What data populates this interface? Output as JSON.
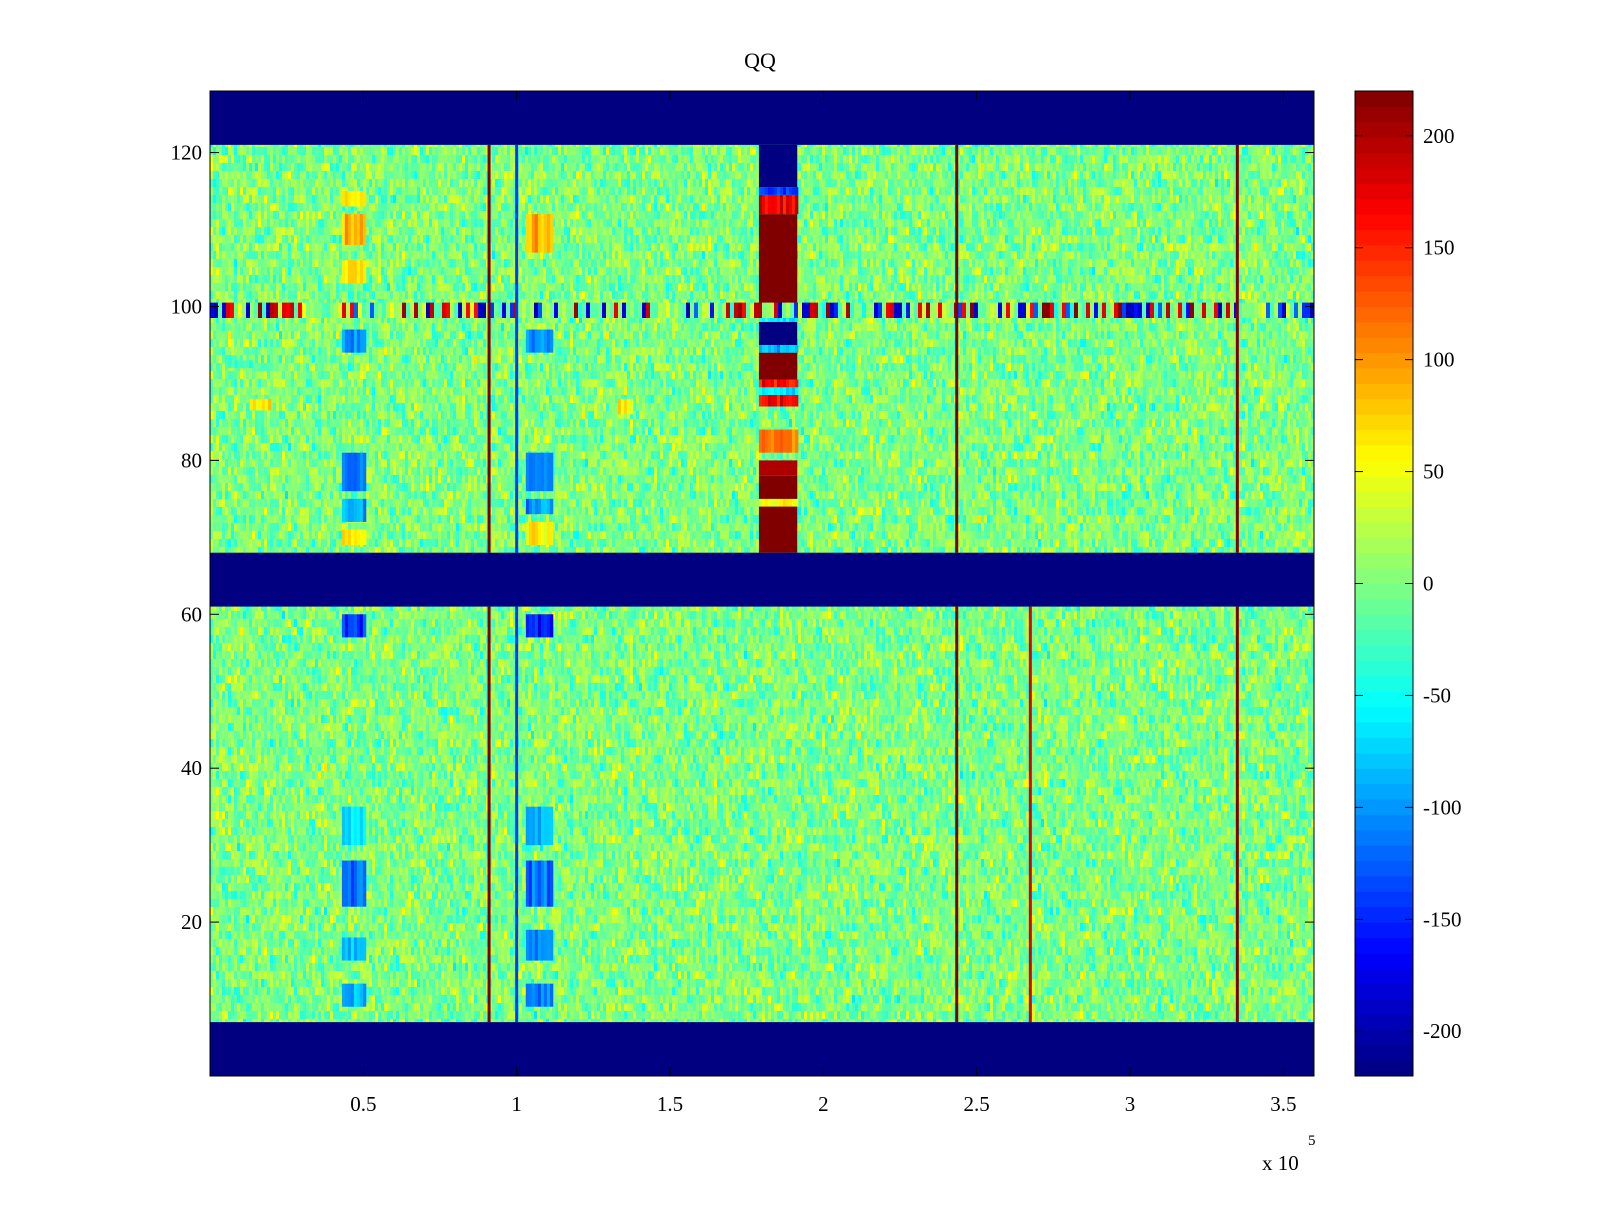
{
  "chart_data": {
    "type": "heatmap",
    "title": "QQ",
    "xlabel": "",
    "ylabel": "",
    "x_multiplier_label": "x 10",
    "x_multiplier_exponent": "5",
    "xlim": [
      0,
      360000
    ],
    "ylim": [
      0,
      128
    ],
    "x_ticks": [
      {
        "value": 50000,
        "label": "0.5"
      },
      {
        "value": 100000,
        "label": "1"
      },
      {
        "value": 150000,
        "label": "1.5"
      },
      {
        "value": 200000,
        "label": "2"
      },
      {
        "value": 250000,
        "label": "2.5"
      },
      {
        "value": 300000,
        "label": "3"
      },
      {
        "value": 350000,
        "label": "3.5"
      }
    ],
    "y_ticks": [
      {
        "value": 20,
        "label": "20"
      },
      {
        "value": 40,
        "label": "40"
      },
      {
        "value": 60,
        "label": "60"
      },
      {
        "value": 80,
        "label": "80"
      },
      {
        "value": 100,
        "label": "100"
      },
      {
        "value": 120,
        "label": "120"
      }
    ],
    "colormap": "jet",
    "clim": [
      -220,
      220
    ],
    "colorbar_ticks": [
      {
        "value": 200,
        "label": "200"
      },
      {
        "value": 150,
        "label": "150"
      },
      {
        "value": 100,
        "label": "100"
      },
      {
        "value": 50,
        "label": "50"
      },
      {
        "value": 0,
        "label": "0"
      },
      {
        "value": -50,
        "label": "-50"
      },
      {
        "value": -100,
        "label": "-100"
      },
      {
        "value": -150,
        "label": "-150"
      },
      {
        "value": -200,
        "label": "-200"
      }
    ],
    "background_value": 0,
    "masked_value": -220,
    "masked_row_bands": [
      {
        "y_start": 0,
        "y_end": 7
      },
      {
        "y_start": 61,
        "y_end": 68
      },
      {
        "y_start": 121,
        "y_end": 128
      }
    ],
    "vertical_lines": [
      {
        "x": 91000,
        "y_ranges": [
          [
            7,
            61
          ],
          [
            68,
            121
          ]
        ],
        "value": 220
      },
      {
        "x": 100000,
        "y_ranges": [
          [
            7,
            61
          ],
          [
            68,
            121
          ]
        ],
        "value": -140
      },
      {
        "x": 243500,
        "y_ranges": [
          [
            7,
            61
          ],
          [
            68,
            121
          ]
        ],
        "value": 220
      },
      {
        "x": 267500,
        "y_ranges": [
          [
            7,
            61
          ]
        ],
        "value": 180
      },
      {
        "x": 335000,
        "y_ranges": [
          [
            7,
            61
          ],
          [
            68,
            121
          ]
        ],
        "value": 220
      }
    ],
    "patches": [
      {
        "x_start": 43000,
        "x_end": 50000,
        "y_start": 9,
        "y_end": 12,
        "value": -90
      },
      {
        "x_start": 43000,
        "x_end": 50000,
        "y_start": 15,
        "y_end": 18,
        "value": -80
      },
      {
        "x_start": 43000,
        "x_end": 50000,
        "y_start": 22,
        "y_end": 28,
        "value": -110
      },
      {
        "x_start": 43000,
        "x_end": 50000,
        "y_start": 30,
        "y_end": 35,
        "value": -70
      },
      {
        "x_start": 43000,
        "x_end": 50000,
        "y_start": 57,
        "y_end": 60,
        "value": -140
      },
      {
        "x_start": 43000,
        "x_end": 50000,
        "y_start": 69,
        "y_end": 71,
        "value": 60
      },
      {
        "x_start": 43000,
        "x_end": 50000,
        "y_start": 72,
        "y_end": 75,
        "value": -90
      },
      {
        "x_start": 43000,
        "x_end": 50000,
        "y_start": 76,
        "y_end": 81,
        "value": -110
      },
      {
        "x_start": 43000,
        "x_end": 50000,
        "y_start": 94,
        "y_end": 97,
        "value": -100
      },
      {
        "x_start": 43000,
        "x_end": 50000,
        "y_start": 103,
        "y_end": 106,
        "value": 60
      },
      {
        "x_start": 43000,
        "x_end": 50000,
        "y_start": 108,
        "y_end": 112,
        "value": 90
      },
      {
        "x_start": 43000,
        "x_end": 50000,
        "y_start": 113,
        "y_end": 115,
        "value": 60
      },
      {
        "x_start": 103000,
        "x_end": 111000,
        "y_start": 9,
        "y_end": 12,
        "value": -100
      },
      {
        "x_start": 103000,
        "x_end": 111000,
        "y_start": 15,
        "y_end": 19,
        "value": -100
      },
      {
        "x_start": 103000,
        "x_end": 111000,
        "y_start": 22,
        "y_end": 28,
        "value": -120
      },
      {
        "x_start": 103000,
        "x_end": 111000,
        "y_start": 30,
        "y_end": 35,
        "value": -90
      },
      {
        "x_start": 103000,
        "x_end": 111000,
        "y_start": 57,
        "y_end": 60,
        "value": -150
      },
      {
        "x_start": 103000,
        "x_end": 111000,
        "y_start": 69,
        "y_end": 72,
        "value": 60
      },
      {
        "x_start": 103000,
        "x_end": 111000,
        "y_start": 73,
        "y_end": 75,
        "value": -100
      },
      {
        "x_start": 103000,
        "x_end": 111000,
        "y_start": 76,
        "y_end": 81,
        "value": -110
      },
      {
        "x_start": 103000,
        "x_end": 111000,
        "y_start": 94,
        "y_end": 97,
        "value": -100
      },
      {
        "x_start": 103000,
        "x_end": 111000,
        "y_start": 107,
        "y_end": 112,
        "value": 90
      },
      {
        "x_start": 179000,
        "x_end": 191500,
        "y_start": 68,
        "y_end": 74,
        "value": 220
      },
      {
        "x_start": 179000,
        "x_end": 191500,
        "y_start": 74,
        "y_end": 75,
        "value": 60
      },
      {
        "x_start": 179000,
        "x_end": 191500,
        "y_start": 75,
        "y_end": 78,
        "value": 220
      },
      {
        "x_start": 179000,
        "x_end": 191500,
        "y_start": 78,
        "y_end": 80,
        "value": 200
      },
      {
        "x_start": 179000,
        "x_end": 191500,
        "y_start": 81,
        "y_end": 84,
        "value": 110
      },
      {
        "x_start": 179000,
        "x_end": 191500,
        "y_start": 87,
        "y_end": 88.5,
        "value": 160
      },
      {
        "x_start": 179000,
        "x_end": 191500,
        "y_start": 88.5,
        "y_end": 89.5,
        "value": -60
      },
      {
        "x_start": 179000,
        "x_end": 191500,
        "y_start": 89.5,
        "y_end": 90.5,
        "value": 160
      },
      {
        "x_start": 179000,
        "x_end": 191500,
        "y_start": 90.5,
        "y_end": 94,
        "value": 220
      },
      {
        "x_start": 179000,
        "x_end": 191500,
        "y_start": 94,
        "y_end": 95,
        "value": -90
      },
      {
        "x_start": 179000,
        "x_end": 191500,
        "y_start": 95,
        "y_end": 98,
        "value": -220
      },
      {
        "x_start": 179000,
        "x_end": 191500,
        "y_start": 98,
        "y_end": 99,
        "value": -60
      },
      {
        "x_start": 179000,
        "x_end": 191500,
        "y_start": 99,
        "y_end": 100,
        "value": 50
      },
      {
        "x_start": 179000,
        "x_end": 191500,
        "y_start": 100,
        "y_end": 112,
        "value": 220
      },
      {
        "x_start": 179000,
        "x_end": 191500,
        "y_start": 112,
        "y_end": 114.5,
        "value": 170
      },
      {
        "x_start": 179000,
        "x_end": 191500,
        "y_start": 114.5,
        "y_end": 115.5,
        "value": -140
      },
      {
        "x_start": 179000,
        "x_end": 191500,
        "y_start": 115.5,
        "y_end": 121,
        "value": -220
      },
      {
        "x_start": 0,
        "x_end": 360000,
        "y_start": 98.5,
        "y_end": 100.5,
        "value": "noisy-strong"
      },
      {
        "x_start": 5000,
        "x_end": 13000,
        "y_start": 92,
        "y_end": 93,
        "value": -30
      },
      {
        "x_start": 13000,
        "x_end": 19000,
        "y_start": 86.5,
        "y_end": 88,
        "value": 60
      },
      {
        "x_start": 133000,
        "x_end": 137000,
        "y_start": 86,
        "y_end": 88,
        "value": 60
      }
    ]
  }
}
